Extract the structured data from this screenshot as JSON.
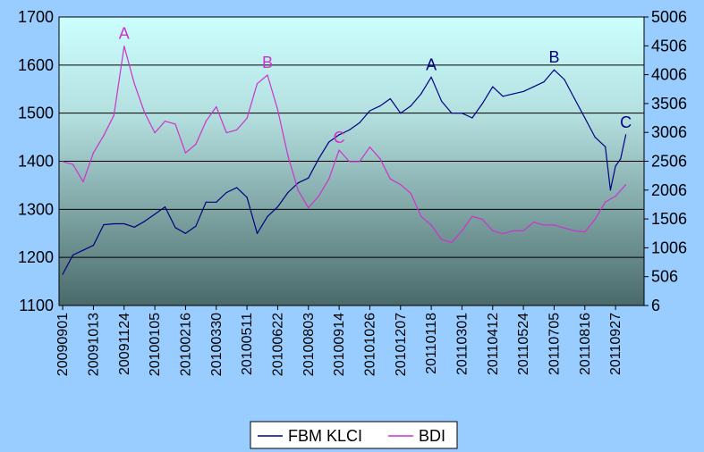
{
  "chart_data": {
    "type": "line",
    "title": "",
    "xlabel": "",
    "ylabel": "",
    "x_tick_labels": [
      "20090901",
      "20091013",
      "20091124",
      "20100105",
      "20100216",
      "20100330",
      "20100511",
      "20100622",
      "20100803",
      "20100914",
      "20101026",
      "20101207",
      "20110118",
      "20110301",
      "20110412",
      "20110524",
      "20110705",
      "20110816",
      "20110927"
    ],
    "y_left_ticks": [
      "1100",
      "1200",
      "1300",
      "1400",
      "1500",
      "1600",
      "1700"
    ],
    "y_right_ticks": [
      "6",
      "506",
      "1006",
      "1506",
      "2006",
      "2506",
      "3006",
      "3506",
      "4006",
      "4506",
      "5006"
    ],
    "ylim_left": [
      1100,
      1700
    ],
    "ylim_right": [
      6,
      5006
    ],
    "grid": true,
    "legend_position": "bottom",
    "series": [
      {
        "name": "FBM KLCI",
        "axis": "left",
        "color": "#000080",
        "points": [
          [
            "20090901",
            1165
          ],
          [
            "20090915",
            1205
          ],
          [
            "20090929",
            1215
          ],
          [
            "20091013",
            1225
          ],
          [
            "20091027",
            1268
          ],
          [
            "20091110",
            1270
          ],
          [
            "20091124",
            1270
          ],
          [
            "20091208",
            1263
          ],
          [
            "20091222",
            1275
          ],
          [
            "20100105",
            1290
          ],
          [
            "20100119",
            1305
          ],
          [
            "20100202",
            1262
          ],
          [
            "20100216",
            1250
          ],
          [
            "20100302",
            1265
          ],
          [
            "20100316",
            1315
          ],
          [
            "20100330",
            1315
          ],
          [
            "20100413",
            1335
          ],
          [
            "20100427",
            1345
          ],
          [
            "20100511",
            1325
          ],
          [
            "20100525",
            1250
          ],
          [
            "20100608",
            1285
          ],
          [
            "20100622",
            1305
          ],
          [
            "20100706",
            1335
          ],
          [
            "20100720",
            1355
          ],
          [
            "20100803",
            1365
          ],
          [
            "20100817",
            1405
          ],
          [
            "20100831",
            1440
          ],
          [
            "20100914",
            1455
          ],
          [
            "20100928",
            1465
          ],
          [
            "20101012",
            1480
          ],
          [
            "20101026",
            1505
          ],
          [
            "20101109",
            1515
          ],
          [
            "20101123",
            1530
          ],
          [
            "20101207",
            1500
          ],
          [
            "20101221",
            1515
          ],
          [
            "20110104",
            1540
          ],
          [
            "20110118",
            1575
          ],
          [
            "20110201",
            1525
          ],
          [
            "20110215",
            1500
          ],
          [
            "20110301",
            1500
          ],
          [
            "20110315",
            1490
          ],
          [
            "20110329",
            1520
          ],
          [
            "20110412",
            1555
          ],
          [
            "20110426",
            1535
          ],
          [
            "20110510",
            1540
          ],
          [
            "20110524",
            1545
          ],
          [
            "20110607",
            1555
          ],
          [
            "20110621",
            1565
          ],
          [
            "20110705",
            1590
          ],
          [
            "20110719",
            1570
          ],
          [
            "20110802",
            1530
          ],
          [
            "20110816",
            1490
          ],
          [
            "20110830",
            1450
          ],
          [
            "20110913",
            1430
          ],
          [
            "20110920",
            1340
          ],
          [
            "20110927",
            1390
          ],
          [
            "20111004",
            1405
          ],
          [
            "20111011",
            1455
          ]
        ]
      },
      {
        "name": "BDI",
        "axis": "right",
        "color": "#cc33cc",
        "points": [
          [
            "20090901",
            2500
          ],
          [
            "20090915",
            2450
          ],
          [
            "20090929",
            2150
          ],
          [
            "20091013",
            2650
          ],
          [
            "20091027",
            2950
          ],
          [
            "20091110",
            3300
          ],
          [
            "20091124",
            4500
          ],
          [
            "20091208",
            3850
          ],
          [
            "20091222",
            3350
          ],
          [
            "20100105",
            3000
          ],
          [
            "20100119",
            3200
          ],
          [
            "20100202",
            3150
          ],
          [
            "20100216",
            2650
          ],
          [
            "20100302",
            2800
          ],
          [
            "20100316",
            3200
          ],
          [
            "20100330",
            3450
          ],
          [
            "20100413",
            3000
          ],
          [
            "20100427",
            3050
          ],
          [
            "20100511",
            3250
          ],
          [
            "20100525",
            3850
          ],
          [
            "20100608",
            4000
          ],
          [
            "20100622",
            3400
          ],
          [
            "20100706",
            2600
          ],
          [
            "20100720",
            2000
          ],
          [
            "20100803",
            1700
          ],
          [
            "20100817",
            1900
          ],
          [
            "20100831",
            2200
          ],
          [
            "20100914",
            2700
          ],
          [
            "20100928",
            2500
          ],
          [
            "20101012",
            2500
          ],
          [
            "20101026",
            2750
          ],
          [
            "20101109",
            2550
          ],
          [
            "20101123",
            2200
          ],
          [
            "20101207",
            2100
          ],
          [
            "20101221",
            1950
          ],
          [
            "20110104",
            1550
          ],
          [
            "20110118",
            1400
          ],
          [
            "20110201",
            1150
          ],
          [
            "20110215",
            1100
          ],
          [
            "20110301",
            1300
          ],
          [
            "20110315",
            1550
          ],
          [
            "20110329",
            1500
          ],
          [
            "20110412",
            1300
          ],
          [
            "20110426",
            1250
          ],
          [
            "20110510",
            1300
          ],
          [
            "20110524",
            1300
          ],
          [
            "20110607",
            1450
          ],
          [
            "20110621",
            1400
          ],
          [
            "20110705",
            1400
          ],
          [
            "20110719",
            1350
          ],
          [
            "20110802",
            1300
          ],
          [
            "20110816",
            1280
          ],
          [
            "20110830",
            1500
          ],
          [
            "20110913",
            1800
          ],
          [
            "20110927",
            1900
          ],
          [
            "20111011",
            2100
          ]
        ]
      }
    ],
    "annotations": [
      {
        "text": "A",
        "series": "BDI",
        "date": "20091124",
        "value": 4500
      },
      {
        "text": "B",
        "series": "BDI",
        "date": "20100608",
        "value": 4000
      },
      {
        "text": "C",
        "series": "BDI",
        "date": "20100914",
        "value": 2700
      },
      {
        "text": "A",
        "series": "FBM KLCI",
        "date": "20110118",
        "value": 1575
      },
      {
        "text": "B",
        "series": "FBM KLCI",
        "date": "20110705",
        "value": 1590
      },
      {
        "text": "C",
        "series": "FBM KLCI",
        "date": "20111011",
        "value": 1455
      }
    ]
  }
}
